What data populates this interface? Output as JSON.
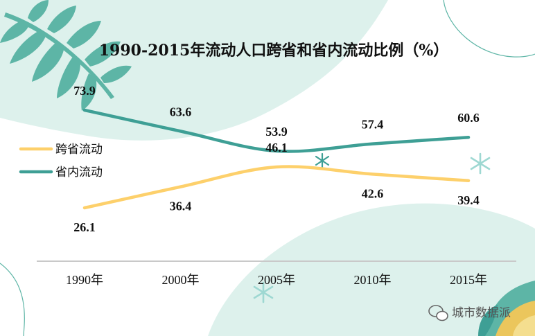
{
  "chart_data": {
    "type": "line",
    "title": "1990-2015年流动人口跨省和省内流动比例（%）",
    "categories": [
      "1990年",
      "2000年",
      "2005年",
      "2010年",
      "2015年"
    ],
    "series": [
      {
        "name": "跨省流动",
        "color": "#FDD06B",
        "values": [
          26.1,
          36.4,
          46.1,
          42.6,
          39.4
        ]
      },
      {
        "name": "省内流动",
        "color": "#3E9F95",
        "values": [
          73.9,
          63.6,
          53.9,
          57.4,
          60.6
        ]
      }
    ],
    "xlabel": "",
    "ylabel": "",
    "ylim": [
      0,
      100
    ],
    "grid": false,
    "legend": "left"
  },
  "watermark": {
    "text": "城市数据派",
    "icon": "wechat-icon"
  },
  "colors": {
    "teal": "#3E9F95",
    "yellow": "#FDD06B",
    "mint": "#DDF1EC",
    "leaf": "#5DB5A6"
  }
}
